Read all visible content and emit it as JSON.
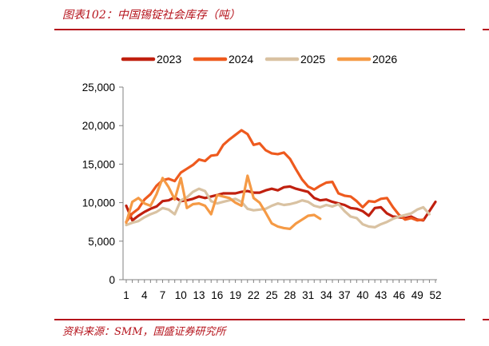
{
  "header": {
    "title": "图表102：中国锡锭社会库存（吨）"
  },
  "footer": {
    "source": "资料来源：SMM，国盛证券研究所"
  },
  "colors": {
    "accent": "#b5121b"
  },
  "chart_data": {
    "type": "line",
    "title": "",
    "xlabel": "",
    "ylabel": "",
    "xlim": [
      1,
      52
    ],
    "ylim": [
      0,
      25000
    ],
    "x_ticks": [
      1,
      4,
      7,
      10,
      13,
      16,
      19,
      22,
      25,
      28,
      31,
      34,
      37,
      40,
      43,
      46,
      49,
      52
    ],
    "y_ticks": [
      0,
      5000,
      10000,
      15000,
      20000,
      25000
    ],
    "y_tick_labels": [
      "0",
      "5,000",
      "10,000",
      "15,000",
      "20,000",
      "25,000"
    ],
    "grid": false,
    "legend_position": "top",
    "series": [
      {
        "name": "2023",
        "color": "#c0200f",
        "width": 3.2,
        "values": [
          9600,
          7700,
          8300,
          8800,
          9200,
          9500,
          10200,
          10300,
          10700,
          10200,
          10300,
          10500,
          10800,
          10600,
          10800,
          11000,
          11200,
          11200,
          11200,
          11400,
          11500,
          11300,
          11300,
          11600,
          11800,
          11600,
          12000,
          12100,
          11800,
          11600,
          11400,
          10600,
          10300,
          10400,
          10100,
          9900,
          9700,
          9300,
          9200,
          8900,
          8300,
          9300,
          9400,
          8600,
          8200,
          8100,
          8000,
          8200,
          7800,
          7700,
          8900,
          10100
        ]
      },
      {
        "name": "2024",
        "color": "#ee5a1e",
        "width": 3.2,
        "values": [
          7500,
          8600,
          9200,
          10400,
          11100,
          12200,
          12900,
          13100,
          12800,
          13900,
          14400,
          14900,
          15600,
          15400,
          16100,
          16200,
          17500,
          18200,
          18800,
          19400,
          18900,
          17500,
          17700,
          16800,
          16400,
          16300,
          16500,
          15700,
          14300,
          13000,
          12100,
          11700,
          12200,
          12600,
          12700,
          11200,
          10900,
          10800,
          10200,
          9400,
          10200,
          10100,
          10500,
          10600,
          9400,
          8400,
          7800,
          8000,
          7700,
          7800
        ]
      },
      {
        "name": "2025",
        "color": "#d9c2a2",
        "width": 3.2,
        "values": [
          7100,
          7400,
          7600,
          8100,
          8500,
          8800,
          9300,
          9100,
          8500,
          10300,
          10700,
          11400,
          11800,
          11500,
          10200,
          9900,
          10100,
          10300,
          10500,
          10100,
          9200,
          9000,
          9100,
          9200,
          9600,
          9900,
          9700,
          9800,
          10000,
          10300,
          10100,
          9600,
          9400,
          9700,
          9500,
          9800,
          8900,
          8200,
          8000,
          7200,
          6900,
          6800,
          7200,
          7500,
          7900,
          8200,
          8400,
          8600,
          9100,
          9400,
          8500
        ]
      },
      {
        "name": "2026",
        "color": "#f59a45",
        "width": 3.2,
        "values": [
          7400,
          10100,
          10600,
          9900,
          9600,
          11100,
          13200,
          12000,
          10400,
          13200,
          9300,
          9800,
          9900,
          9600,
          8500,
          11000,
          10800,
          10600,
          10000,
          9600,
          13500,
          10600,
          10000,
          8700,
          7300,
          6900,
          6700,
          6600,
          7300,
          7800,
          8300,
          8400,
          7900
        ]
      }
    ]
  }
}
